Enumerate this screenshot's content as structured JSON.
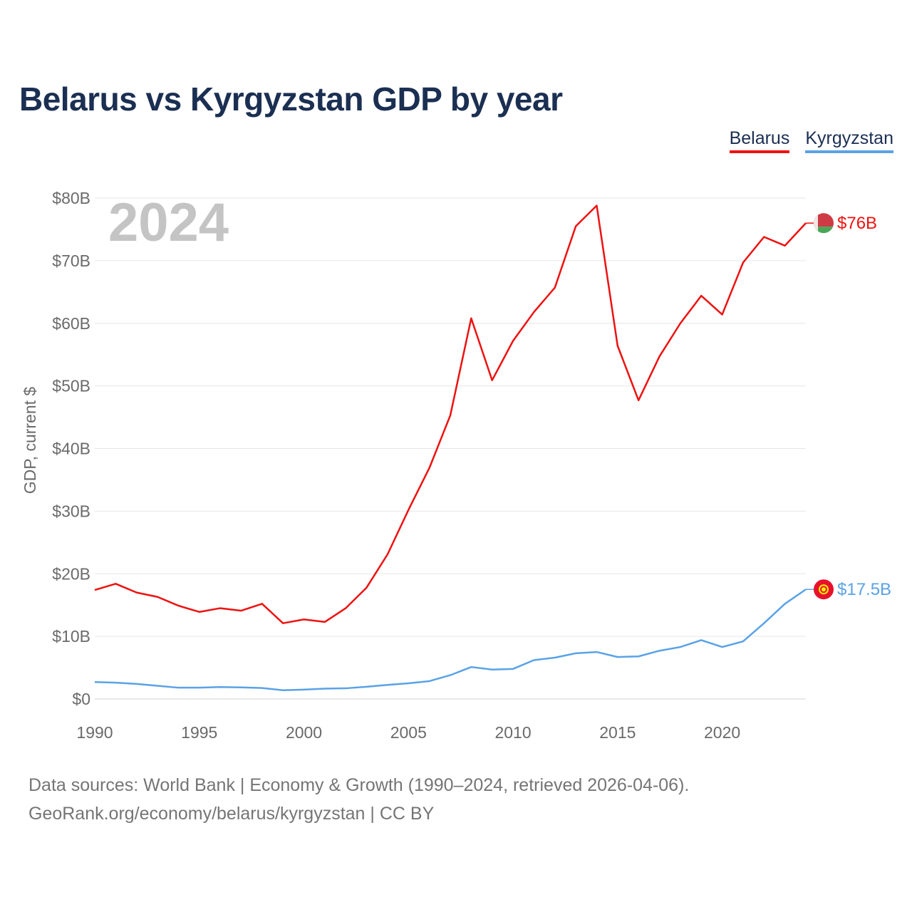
{
  "title": "Belarus vs Kyrgyzstan GDP by year",
  "legend": {
    "belarus": "Belarus",
    "kyrgyzstan": "Kyrgyzstan"
  },
  "footer": {
    "line1": "Data sources: World Bank | Economy & Growth (1990–2024, retrieved 2026-04-06).",
    "line2": "GeoRank.org/economy/belarus/kyrgyzstan | CC BY"
  },
  "chart_data": {
    "type": "line",
    "title": "Belarus vs Kyrgyzstan GDP by year",
    "xlabel": "",
    "ylabel": "GDP, current $",
    "year_label": "2024",
    "xlim": [
      1990,
      2024
    ],
    "ylim": [
      0,
      80
    ],
    "y_unit": "billions USD",
    "x_ticks": [
      1990,
      1995,
      2000,
      2005,
      2010,
      2015,
      2020
    ],
    "y_ticks": [
      0,
      10,
      20,
      30,
      40,
      50,
      60,
      70,
      80
    ],
    "y_tick_labels": [
      "$0",
      "$10B",
      "$20B",
      "$30B",
      "$40B",
      "$50B",
      "$60B",
      "$70B",
      "$80B"
    ],
    "grid": true,
    "legend_position": "top-right",
    "x": [
      1990,
      1991,
      1992,
      1993,
      1994,
      1995,
      1996,
      1997,
      1998,
      1999,
      2000,
      2001,
      2002,
      2003,
      2004,
      2005,
      2006,
      2007,
      2008,
      2009,
      2010,
      2011,
      2012,
      2013,
      2014,
      2015,
      2016,
      2017,
      2018,
      2019,
      2020,
      2021,
      2022,
      2023,
      2024
    ],
    "series": [
      {
        "name": "Belarus",
        "color": "#ee1111",
        "end_label": "$76B",
        "values": [
          17.4,
          18.4,
          17.0,
          16.3,
          14.9,
          13.9,
          14.5,
          14.1,
          15.2,
          12.1,
          12.7,
          12.3,
          14.5,
          17.8,
          23.1,
          30.2,
          36.9,
          45.3,
          60.8,
          50.9,
          57.2,
          61.8,
          65.7,
          75.5,
          78.8,
          56.4,
          47.7,
          54.7,
          60.0,
          64.4,
          61.4,
          69.7,
          73.8,
          72.4,
          76.0
        ]
      },
      {
        "name": "Kyrgyzstan",
        "color": "#5aa2e6",
        "end_label": "$17.5B",
        "values": [
          2.7,
          2.6,
          2.4,
          2.1,
          1.8,
          1.8,
          1.9,
          1.85,
          1.75,
          1.4,
          1.5,
          1.65,
          1.7,
          1.95,
          2.25,
          2.5,
          2.85,
          3.8,
          5.1,
          4.7,
          4.8,
          6.2,
          6.6,
          7.3,
          7.5,
          6.7,
          6.8,
          7.7,
          8.3,
          9.4,
          8.3,
          9.2,
          12.1,
          15.2,
          17.5
        ]
      }
    ]
  }
}
